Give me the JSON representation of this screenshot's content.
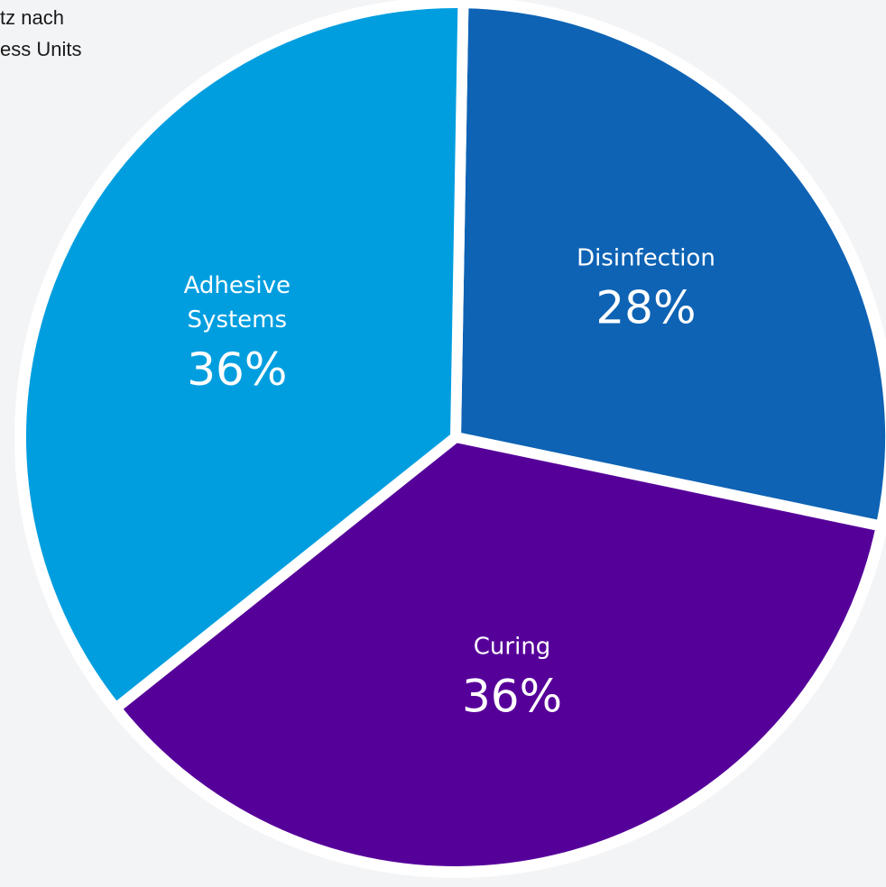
{
  "chart_data": {
    "type": "pie",
    "title_lines": [
      "tz nach",
      "ess Units"
    ],
    "slices": [
      {
        "label_lines": [
          "Disinfection"
        ],
        "value": 28,
        "value_label": "28%",
        "color": "#0e63b4"
      },
      {
        "label_lines": [
          "Curing"
        ],
        "value": 36,
        "value_label": "36%",
        "color": "#56009a"
      },
      {
        "label_lines": [
          "Adhesive",
          "Systems"
        ],
        "value": 36,
        "value_label": "36%",
        "color": "#009edf"
      }
    ],
    "separator_color": "#ffffff",
    "legend": "none"
  }
}
